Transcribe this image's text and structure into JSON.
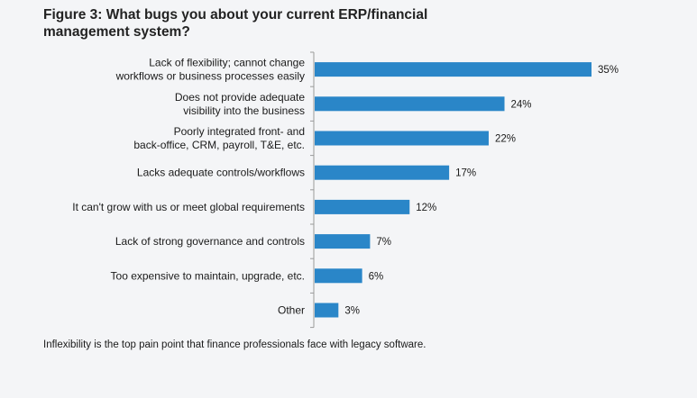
{
  "title": "Figure 3: What bugs you about your current ERP/financial management system?",
  "caption": "Inflexibility is the top pain point that finance professionals face with legacy software.",
  "colors": {
    "bar": "#2a86c8",
    "axis": "#9a9a9a",
    "background": "#f4f5f7"
  },
  "chart_data": {
    "type": "bar",
    "orientation": "horizontal",
    "categories": [
      [
        "Lack of flexibility; cannot change",
        "workflows or business processes easily"
      ],
      [
        "Does not provide adequate",
        "visibility into the business"
      ],
      [
        "Poorly integrated front- and",
        "back-office, CRM, payroll, T&E, etc."
      ],
      [
        "Lacks adequate controls/workflows"
      ],
      [
        "It can't grow with us or meet global requirements"
      ],
      [
        "Lack of strong governance and controls"
      ],
      [
        "Too expensive to maintain, upgrade, etc."
      ],
      [
        "Other"
      ]
    ],
    "values": [
      35,
      24,
      22,
      17,
      12,
      7,
      6,
      3
    ],
    "value_labels": [
      "35%",
      "24%",
      "22%",
      "17%",
      "12%",
      "7%",
      "6%",
      "3%"
    ],
    "value_unit": "%",
    "xlim": [
      0,
      35
    ],
    "grid": false,
    "legend": "none"
  }
}
